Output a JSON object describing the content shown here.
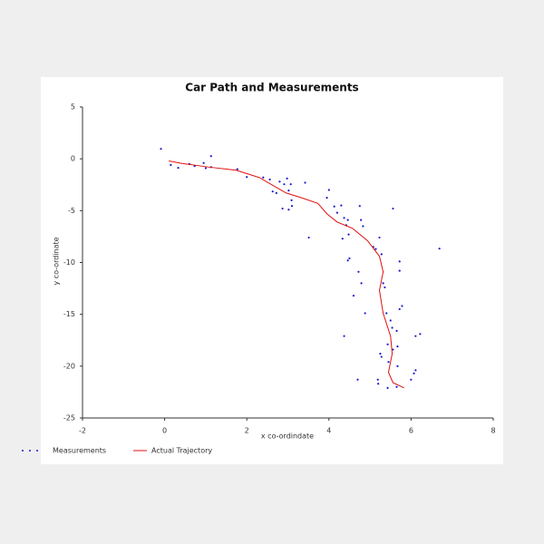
{
  "chart_data": {
    "type": "scatter",
    "title": "Car Path and Measurements",
    "x_label": "x co-ordindate",
    "y_label": "y co-ordinate",
    "xlim": [
      -2,
      8
    ],
    "xticks": [
      -2,
      0,
      2,
      4,
      6,
      8
    ],
    "ylim": [
      -25,
      5
    ],
    "yticks": [
      -25,
      -20,
      -15,
      -10,
      -5,
      0,
      5
    ],
    "grid": false,
    "legend": "bottom-left",
    "series": [
      {
        "name": "Measurements",
        "type": "scatter",
        "color": "#1a1acc",
        "x": [
          -0.09,
          0.15,
          0.33,
          0.6,
          0.73,
          0.95,
          1.13,
          1.0,
          1.13,
          1.77,
          2.0,
          2.4,
          2.56,
          2.63,
          2.72,
          2.8,
          2.91,
          2.98,
          3.02,
          3.09,
          3.02,
          3.1,
          2.87,
          3.07,
          3.42,
          3.51,
          3.95,
          4.0,
          4.13,
          4.2,
          4.3,
          4.37,
          4.46,
          4.33,
          4.42,
          4.48,
          4.46,
          4.5,
          4.75,
          4.78,
          4.83,
          4.37,
          4.6,
          4.7,
          4.72,
          4.79,
          4.88,
          5.08,
          5.14,
          5.23,
          5.28,
          5.19,
          5.2,
          5.25,
          5.28,
          5.32,
          5.36,
          5.4,
          5.43,
          5.45,
          5.5,
          5.54,
          5.56,
          5.56,
          5.65,
          5.67,
          5.67,
          5.72,
          5.72,
          5.72,
          5.78,
          5.65,
          5.43,
          6.0,
          6.07,
          6.11,
          6.11,
          6.22,
          6.69
        ],
        "y": [
          0.96,
          -0.6,
          -0.87,
          -0.5,
          -0.7,
          -0.4,
          0.26,
          -0.9,
          -0.8,
          -1.0,
          -1.75,
          -1.8,
          -2.0,
          -3.15,
          -3.3,
          -2.2,
          -2.45,
          -1.9,
          -3.06,
          -4.0,
          -4.9,
          -4.55,
          -4.8,
          -2.45,
          -2.3,
          -7.6,
          -3.76,
          -3.0,
          -4.6,
          -5.2,
          -4.5,
          -5.7,
          -5.9,
          -7.7,
          -6.4,
          -7.3,
          -9.8,
          -9.6,
          -4.55,
          -5.9,
          -6.5,
          -17.1,
          -13.2,
          -21.3,
          -10.9,
          -12.0,
          -14.9,
          -8.5,
          -8.7,
          -7.6,
          -9.2,
          -21.3,
          -21.7,
          -18.8,
          -19.1,
          -12.0,
          -12.4,
          -14.9,
          -17.9,
          -19.6,
          -15.6,
          -16.3,
          -18.4,
          -4.8,
          -16.6,
          -18.1,
          -20.0,
          -9.9,
          -10.8,
          -14.5,
          -14.2,
          -22.0,
          -22.1,
          -21.3,
          -20.7,
          -20.4,
          -17.1,
          -16.9,
          -8.66
        ]
      },
      {
        "name": "Actual Trajectory",
        "type": "line",
        "color": "#e01010",
        "x": [
          0.1,
          0.42,
          1.08,
          1.74,
          2.3,
          2.74,
          2.96,
          3.29,
          3.73,
          3.95,
          4.2,
          4.57,
          4.94,
          5.23,
          5.32,
          5.23,
          5.32,
          5.5,
          5.54,
          5.45,
          5.56,
          5.83
        ],
        "y": [
          -0.2,
          -0.44,
          -0.8,
          -1.1,
          -1.8,
          -2.8,
          -3.3,
          -3.7,
          -4.3,
          -5.3,
          -6.1,
          -6.7,
          -7.9,
          -9.4,
          -10.9,
          -12.7,
          -14.9,
          -17.1,
          -18.8,
          -20.6,
          -21.6,
          -22.1
        ]
      }
    ]
  }
}
